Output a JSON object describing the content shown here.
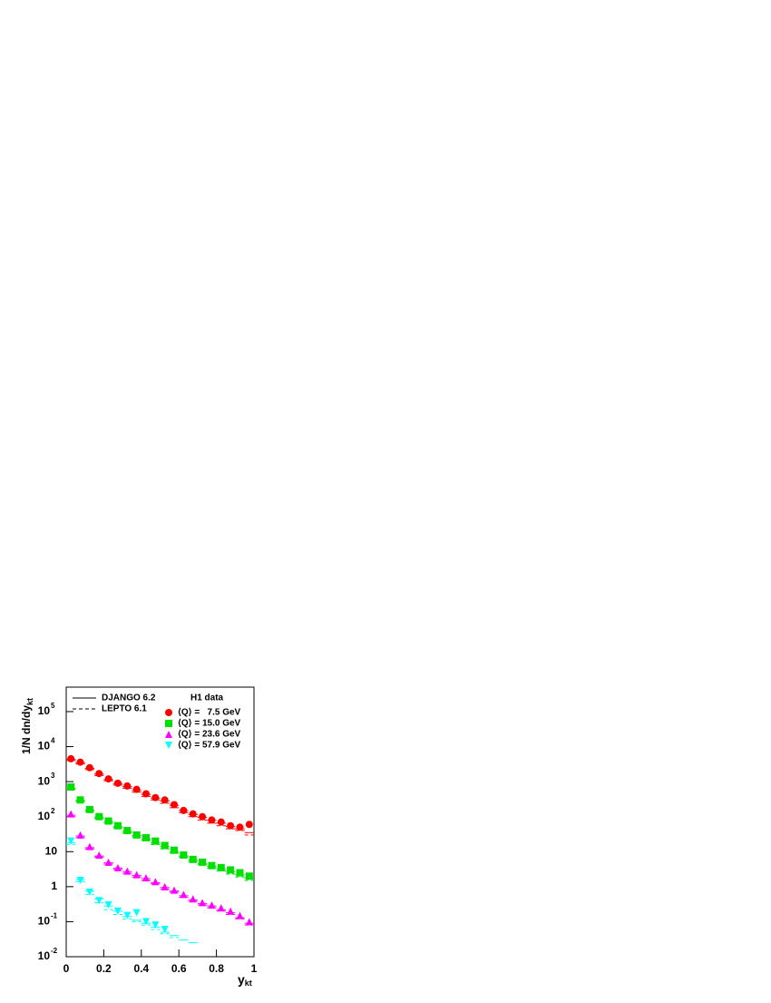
{
  "chart_data": {
    "type": "scatter",
    "x_label": "y",
    "x_label_sub": "kt",
    "y_label": "1/N dn/dy",
    "y_label_sub": "kt",
    "log_y": true,
    "xlim": [
      0,
      1
    ],
    "xticks": [
      0,
      0.2,
      0.4,
      0.6,
      0.8,
      1
    ],
    "ylim": [
      0.01,
      500000
    ],
    "yticks": [
      {
        "value": 0.01,
        "label": "10",
        "sup": "-2"
      },
      {
        "value": 0.1,
        "label": "10",
        "sup": "-1"
      },
      1,
      10,
      {
        "value": 100,
        "label": "10",
        "sup": "2"
      },
      {
        "value": 1000,
        "label": "10",
        "sup": "3"
      },
      {
        "value": 10000,
        "label": "10",
        "sup": "4"
      },
      {
        "value": 100000,
        "label": "10",
        "sup": "5"
      }
    ],
    "bins": [
      0,
      0.05,
      0.1,
      0.15,
      0.2,
      0.25,
      0.3,
      0.35,
      0.4,
      0.45,
      0.5,
      0.55,
      0.6,
      0.65,
      0.7,
      0.75,
      0.8,
      0.85,
      0.9,
      0.95,
      1
    ],
    "legend_title": "H1 data",
    "models": [
      {
        "name": "DJANGO 6.2",
        "dash": false
      },
      {
        "name": "LEPTO 6.1",
        "dash": true
      }
    ],
    "series": [
      {
        "name": "⟨Q⟩ =   7.5 GeV",
        "color": "#ff0000",
        "marker": "circle",
        "values": [
          4500,
          3600,
          2500,
          1700,
          1200,
          900,
          750,
          600,
          450,
          350,
          300,
          220,
          150,
          120,
          100,
          80,
          70,
          55,
          50,
          60
        ],
        "model_values": [
          [
            4300,
            3500,
            2400,
            1650,
            1150,
            880,
            720,
            560,
            430,
            340,
            280,
            210,
            150,
            115,
            95,
            78,
            65,
            52,
            45,
            35
          ],
          [
            4000,
            3200,
            2200,
            1500,
            1050,
            800,
            650,
            500,
            380,
            300,
            240,
            180,
            130,
            100,
            80,
            65,
            55,
            45,
            40,
            30
          ]
        ]
      },
      {
        "name": "⟨Q⟩ = 15.0 GeV",
        "color": "#00e000",
        "marker": "square",
        "values": [
          700,
          300,
          160,
          100,
          75,
          55,
          40,
          30,
          25,
          20,
          15,
          11,
          8,
          6,
          5,
          4,
          3.5,
          3,
          2.5,
          2
        ],
        "model_values": [
          [
            650,
            290,
            155,
            98,
            72,
            52,
            38,
            29,
            23,
            18,
            14,
            10,
            7.5,
            5.8,
            4.6,
            3.8,
            3.2,
            2.7,
            2.2,
            1.8
          ],
          [
            600,
            270,
            140,
            90,
            65,
            48,
            35,
            26,
            21,
            16,
            12,
            9,
            7,
            5.2,
            4.2,
            3.4,
            2.8,
            2.3,
            1.9,
            1.5
          ]
        ]
      },
      {
        "name": "⟨Q⟩ = 23.6 GeV",
        "color": "#ff00ff",
        "marker": "triangle-up",
        "values": [
          120,
          30,
          14,
          8,
          5,
          3.5,
          2.8,
          2.2,
          1.8,
          1.4,
          1,
          0.8,
          0.6,
          0.45,
          0.35,
          0.3,
          0.25,
          0.2,
          0.15,
          0.1
        ],
        "model_values": [
          [
            110,
            28,
            13,
            7.5,
            4.8,
            3.4,
            2.7,
            2.1,
            1.7,
            1.3,
            0.95,
            0.75,
            0.55,
            0.42,
            0.33,
            0.28,
            0.22,
            0.18,
            0.13,
            0.09
          ],
          [
            100,
            25,
            12,
            7,
            4.4,
            3.1,
            2.4,
            1.9,
            1.5,
            1.2,
            0.85,
            0.7,
            0.5,
            0.38,
            0.3,
            0.25,
            0.2,
            0.16,
            0.12,
            0.08
          ]
        ]
      },
      {
        "name": "⟨Q⟩ = 57.9 GeV",
        "color": "#00ffff",
        "marker": "triangle-down",
        "values": [
          20,
          1.5,
          0.7,
          0.4,
          0.3,
          0.2,
          0.15,
          0.18,
          0.1,
          0.08,
          0.06,
          null,
          null,
          null,
          null,
          null,
          null,
          null,
          null,
          null
        ],
        "model_values": [
          [
            18,
            1.6,
            0.75,
            0.45,
            0.28,
            0.2,
            0.14,
            0.11,
            0.09,
            0.07,
            0.05,
            0.04,
            0.03,
            0.025,
            null,
            null,
            null,
            null,
            null,
            null
          ],
          [
            16,
            1.4,
            0.6,
            0.35,
            0.22,
            0.16,
            0.12,
            0.1,
            0.08,
            0.06,
            0.045,
            0.035,
            null,
            null,
            null,
            null,
            null,
            null,
            null,
            null
          ]
        ]
      }
    ]
  }
}
